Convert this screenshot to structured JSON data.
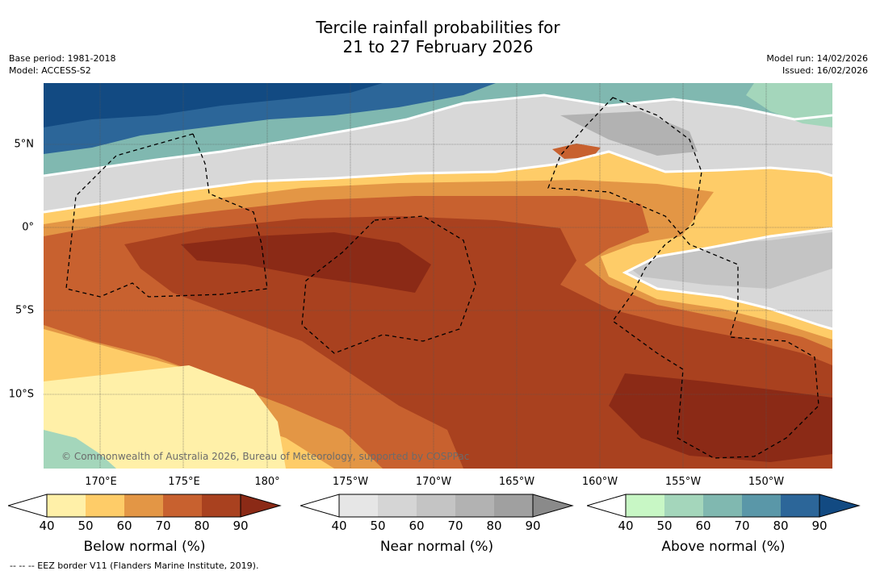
{
  "title_line1": "Tercile rainfall probabilities for",
  "title_line2": "21 to 27 February 2026",
  "base_period": "Base period: 1981-2018",
  "model": "Model: ACCESS-S2",
  "model_run": "Model run: 14/02/2026",
  "issued": "Issued: 16/02/2026",
  "copyright": "© Commonwealth of Australia 2026, Bureau of Meteorology, supported by COSPPac",
  "footer": "--  --  -- EEZ border V11 (Flanders Marine Institute, 2019).",
  "lon_labels": [
    "170°E",
    "175°E",
    "180°",
    "175°W",
    "170°W",
    "165°W",
    "160°W",
    "155°W",
    "150°W"
  ],
  "lat_labels": [
    "5°N",
    "0°",
    "5°S",
    "10°S"
  ],
  "colorbars": [
    {
      "title": "Below normal (%)",
      "ticks": [
        "40",
        "50",
        "60",
        "70",
        "80",
        "90"
      ],
      "colors": [
        "#fff0a8",
        "#fecc68",
        "#e39645",
        "#c8612f",
        "#a9411f",
        "#8b2a16"
      ]
    },
    {
      "title": "Near normal (%)",
      "ticks": [
        "40",
        "50",
        "60",
        "70",
        "80",
        "90"
      ],
      "colors": [
        "#e6e6e6",
        "#d5d5d5",
        "#c4c4c4",
        "#b2b2b2",
        "#a0a0a0",
        "#8a8a8a"
      ]
    },
    {
      "title": "Above normal (%)",
      "ticks": [
        "40",
        "50",
        "60",
        "70",
        "80",
        "90"
      ],
      "colors": [
        "#c8f7c5",
        "#a4d6bb",
        "#80b8b0",
        "#5a97a8",
        "#2c6699",
        "#124a82"
      ]
    }
  ]
}
